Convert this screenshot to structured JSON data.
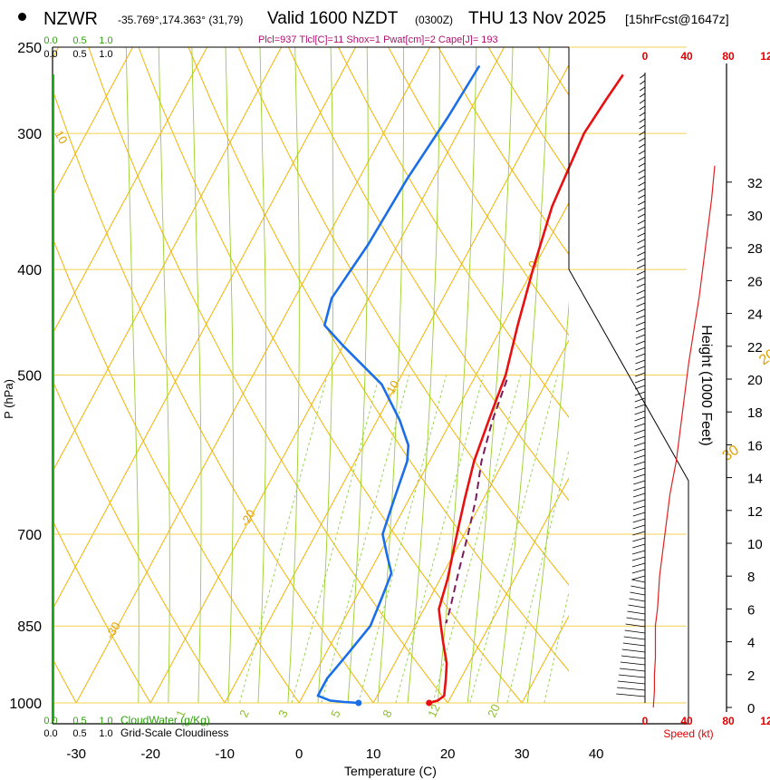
{
  "header": {
    "station": "NZWR",
    "coords": "-35.769°,174.363° (31,79)",
    "valid": "Valid 1600 NZDT",
    "utc": "(0300Z)",
    "date": "THU 13 Nov 2025",
    "forecast": "[15hrFcst@1647z]",
    "params": "Plcl=937 Tlcl[C]=11 Shox=1 Pwat[cm]=2 Cape[J]= 193"
  },
  "chart_data": {
    "type": "line",
    "title": "Skew-T sounding NZWR",
    "xlabel": "Temperature (C)",
    "ylabel": "P (hPa)",
    "y2label": "Height (1000 Feet)",
    "speed_label": "Speed (kt)",
    "temp_ticks": [
      -30,
      -20,
      -10,
      0,
      10,
      20,
      30,
      40
    ],
    "pressure_ticks": [
      250,
      300,
      400,
      500,
      700,
      850,
      1000
    ],
    "height_ticks": [
      0,
      2,
      4,
      6,
      8,
      10,
      12,
      14,
      16,
      18,
      20,
      22,
      24,
      26,
      28,
      30,
      32
    ],
    "speed_ticks": [
      "0",
      "40",
      "80",
      "12"
    ],
    "cloud_ticks": [
      "0.0",
      "0.5",
      "1.0"
    ],
    "cloud_ticks_green": [
      "0.0",
      "0.5",
      "1.0"
    ],
    "cloudwater_label": "CloudWater (g/Kg)",
    "cloudiness_label": "Grid-Scale Cloudiness",
    "isotherm_labels": [
      {
        "text": "10",
        "t": 10,
        "p": 300
      },
      {
        "text": "0",
        "t": 0,
        "p": 400
      },
      {
        "text": "-10",
        "t": -10,
        "p": 525
      },
      {
        "text": "-20",
        "t": -20,
        "p": 690
      },
      {
        "text": "-30",
        "t": -30,
        "p": 875
      }
    ],
    "theta_labels": [
      {
        "text": "0",
        "t": 36,
        "p": 350
      },
      {
        "text": "10",
        "t": 38,
        "p": 430
      },
      {
        "text": "20",
        "t": 38,
        "p": 490
      },
      {
        "text": "30",
        "t": 40,
        "p": 600
      }
    ],
    "mixing_labels": [
      "1",
      "2",
      "3",
      "5",
      "8",
      "12",
      "20"
    ],
    "series": [
      {
        "name": "Temperature",
        "color": "#e81010",
        "points": [
          [
            -2,
            265
          ],
          [
            -2.5,
            280
          ],
          [
            -3,
            300
          ],
          [
            -2,
            350
          ],
          [
            0,
            400
          ],
          [
            2,
            450
          ],
          [
            4,
            500
          ],
          [
            4.5,
            525
          ],
          [
            5,
            550
          ],
          [
            6,
            600
          ],
          [
            7.5,
            650
          ],
          [
            9,
            700
          ],
          [
            11,
            770
          ],
          [
            12,
            820
          ],
          [
            13.5,
            850
          ],
          [
            15,
            880
          ],
          [
            17,
            920
          ],
          [
            18,
            950
          ],
          [
            19,
            985
          ],
          [
            18.5,
            995
          ],
          [
            17.5,
            1000
          ]
        ]
      },
      {
        "name": "Dewpoint",
        "color": "#1a6ee8",
        "points": [
          [
            -22,
            260
          ],
          [
            -22.5,
            290
          ],
          [
            -23.5,
            330
          ],
          [
            -24,
            380
          ],
          [
            -25,
            425
          ],
          [
            -24,
            450
          ],
          [
            -20,
            470
          ],
          [
            -12,
            510
          ],
          [
            -7,
            550
          ],
          [
            -4,
            580
          ],
          [
            -3,
            600
          ],
          [
            -2,
            650
          ],
          [
            -1,
            700
          ],
          [
            1,
            730
          ],
          [
            3,
            760
          ],
          [
            3.5,
            800
          ],
          [
            4,
            850
          ],
          [
            3,
            900
          ],
          [
            2,
            950
          ],
          [
            2,
            985
          ],
          [
            4,
            995
          ],
          [
            6,
            998
          ],
          [
            8,
            1000
          ]
        ]
      },
      {
        "name": "Parcel",
        "color": "#7b1b5a",
        "points": [
          [
            4.5,
            505
          ],
          [
            5.5,
            550
          ],
          [
            7,
            600
          ],
          [
            9,
            650
          ],
          [
            10.5,
            700
          ],
          [
            12,
            760
          ],
          [
            13.5,
            820
          ],
          [
            14,
            845
          ]
        ]
      }
    ],
    "height_profile_color": "#e02020",
    "speed_profile_kt": [
      [
        8,
        0
      ],
      [
        9,
        1
      ],
      [
        9,
        2
      ],
      [
        10,
        3
      ],
      [
        10,
        4
      ],
      [
        10,
        5
      ],
      [
        12,
        6
      ],
      [
        13,
        7
      ],
      [
        14,
        8
      ],
      [
        16,
        9
      ],
      [
        18,
        10
      ],
      [
        22,
        12
      ],
      [
        24,
        13
      ],
      [
        27,
        14
      ],
      [
        30,
        15
      ],
      [
        34,
        17
      ],
      [
        38,
        19
      ],
      [
        42,
        21
      ],
      [
        47,
        23
      ],
      [
        52,
        25
      ],
      [
        56,
        27
      ],
      [
        60,
        29
      ],
      [
        64,
        31
      ],
      [
        67,
        33
      ]
    ]
  }
}
